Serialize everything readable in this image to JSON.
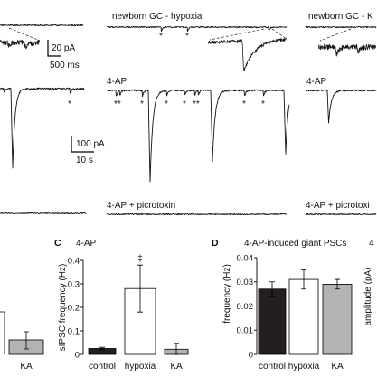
{
  "figure": {
    "left": {
      "star_mid": "*"
    },
    "middle": {
      "title": "newborn GC - hypoxia",
      "stars_top": [
        "*",
        "*"
      ],
      "label_4ap": "4-AP",
      "stars_mid": [
        "**",
        "*",
        "*",
        "*",
        "**",
        "*",
        "*"
      ],
      "label_ptx": "4-AP + picrotoxin"
    },
    "right": {
      "title": "newborn GC - K",
      "label_4ap": "4-AP",
      "label_ptx": "4-AP + picrotoxi"
    },
    "scale_bars": {
      "inset_current": "20 pA",
      "inset_time": "500 ms",
      "main_current": "100 pA",
      "main_time": "10 s"
    }
  },
  "colors": {
    "trace": "#111111",
    "control": "#231f20",
    "hypoxia": "#ffffff",
    "KA": "#b3b3b3"
  },
  "chart_data": [
    {
      "type": "bar",
      "categories": [
        "KA"
      ],
      "bar_colors": [
        "#b3b3b3"
      ]
    },
    {
      "panel": "C",
      "type": "bar",
      "title": "4-AP",
      "ylabel": "sIPSC frequency (Hz)",
      "categories": [
        "control",
        "hypoxia",
        "KA"
      ],
      "values": [
        0.025,
        0.28,
        0.022
      ],
      "errors": [
        0.005,
        0.1,
        0.025
      ],
      "ylim": [
        0,
        0.4
      ],
      "yticks": [
        0,
        0.1,
        0.2,
        0.3,
        0.4
      ],
      "annotations": [
        {
          "category": "hypoxia",
          "text": "‡"
        }
      ],
      "bar_colors": [
        "#231f20",
        "#ffffff",
        "#b3b3b3"
      ],
      "grid": false,
      "legend": "none"
    },
    {
      "panel": "D",
      "type": "bar",
      "title": "4-AP-induced giant PSCs",
      "ylabel": "frequency (Hz)",
      "categories": [
        "control",
        "hypoxia",
        "KA"
      ],
      "values": [
        0.027,
        0.031,
        0.029
      ],
      "errors": [
        0.003,
        0.004,
        0.002
      ],
      "ylim": [
        0,
        0.04
      ],
      "yticks": [
        0,
        0.01,
        0.02,
        0.03,
        0.04
      ],
      "bar_colors": [
        "#231f20",
        "#ffffff",
        "#b3b3b3"
      ],
      "grid": false,
      "legend": "none"
    },
    {
      "type": "bar",
      "title": "4",
      "ylabel": "amplitude (pA)"
    }
  ]
}
